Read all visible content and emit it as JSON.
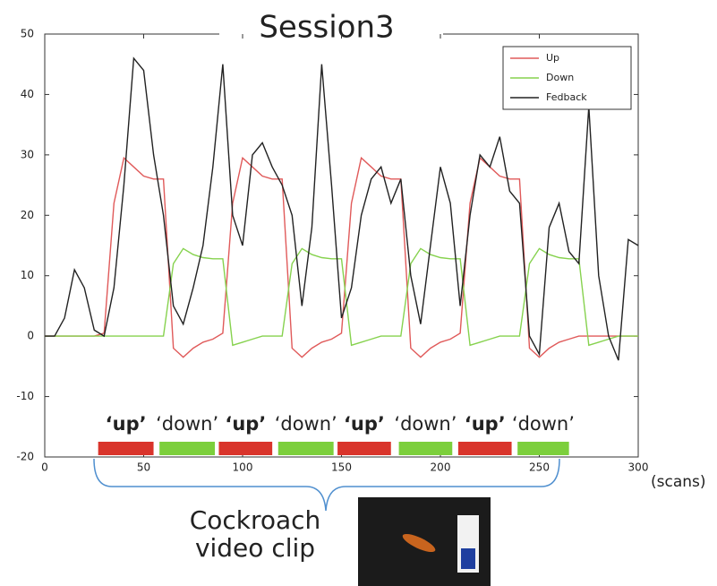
{
  "chart_data": {
    "type": "line",
    "title": "Session3",
    "x_label": "(scans)",
    "x": [
      0,
      5,
      10,
      15,
      20,
      25,
      30,
      35,
      40,
      45,
      50,
      55,
      60,
      65,
      70,
      75,
      80,
      85,
      90,
      95,
      100,
      105,
      110,
      115,
      120,
      125,
      130,
      135,
      140,
      145,
      150,
      155,
      160,
      165,
      170,
      175,
      180,
      185,
      190,
      195,
      200,
      205,
      210,
      215,
      220,
      225,
      230,
      235,
      240,
      245,
      250,
      255,
      260,
      265,
      270,
      275,
      280,
      285,
      290,
      295,
      300
    ],
    "series": [
      {
        "name": "Up",
        "color": "#e05a5a",
        "values": [
          0,
          0,
          0,
          0,
          0,
          0,
          0.5,
          22,
          29.5,
          28,
          26.5,
          26,
          26,
          -2,
          -3.5,
          -2,
          -1,
          -0.5,
          0.5,
          22,
          29.5,
          28,
          26.5,
          26,
          26,
          -2,
          -3.5,
          -2,
          -1,
          -0.5,
          0.5,
          22,
          29.5,
          28,
          26.5,
          26,
          26,
          -2,
          -3.5,
          -2,
          -1,
          -0.5,
          0.5,
          22,
          29.5,
          28,
          26.5,
          26,
          26,
          -2,
          -3.5,
          -2,
          -1,
          -0.5,
          0,
          0,
          0,
          0,
          0,
          0,
          0
        ]
      },
      {
        "name": "Down",
        "color": "#86d24e",
        "values": [
          0,
          0,
          0,
          0,
          0,
          0,
          0,
          0,
          0,
          0,
          0,
          0,
          0,
          12,
          14.5,
          13.5,
          13,
          12.8,
          12.8,
          -1.5,
          -1,
          -0.5,
          0,
          0,
          0,
          12,
          14.5,
          13.5,
          13,
          12.8,
          12.8,
          -1.5,
          -1,
          -0.5,
          0,
          0,
          0,
          12,
          14.5,
          13.5,
          13,
          12.8,
          12.8,
          -1.5,
          -1,
          -0.5,
          0,
          0,
          0,
          12,
          14.5,
          13.5,
          13,
          12.8,
          12.8,
          -1.5,
          -1,
          -0.5,
          0,
          0,
          0
        ]
      },
      {
        "name": "Fedback",
        "color": "#222222",
        "values": [
          0,
          0,
          3,
          11,
          8,
          1,
          0,
          8,
          25,
          46,
          44,
          30,
          20,
          5,
          2,
          8,
          15,
          28,
          45,
          20,
          15,
          30,
          32,
          28,
          25,
          20,
          5,
          18,
          45,
          25,
          3,
          8,
          20,
          26,
          28,
          22,
          26,
          10,
          2,
          15,
          28,
          22,
          5,
          20,
          30,
          28,
          33,
          24,
          22,
          0,
          -3,
          18,
          22,
          14,
          12,
          38,
          10,
          0,
          -4,
          16,
          15
        ]
      }
    ],
    "xlim": [
      0,
      300
    ],
    "xticks": [
      0,
      50,
      100,
      150,
      200,
      250,
      300
    ],
    "ylim": [
      -20,
      50
    ],
    "yticks": [
      -20,
      -10,
      0,
      10,
      20,
      30,
      40,
      50
    ],
    "legend": "top-right",
    "blocks": [
      {
        "label": "‘up’",
        "start": 27,
        "end": 55,
        "color": "#d9342b"
      },
      {
        "label": "‘down’",
        "start": 58,
        "end": 86,
        "color": "#7ccf3c"
      },
      {
        "label": "‘up’",
        "start": 88,
        "end": 115,
        "color": "#d9342b"
      },
      {
        "label": "‘down’",
        "start": 118,
        "end": 146,
        "color": "#7ccf3c"
      },
      {
        "label": "‘up’",
        "start": 148,
        "end": 175,
        "color": "#d9342b"
      },
      {
        "label": "‘down’",
        "start": 179,
        "end": 206,
        "color": "#7ccf3c"
      },
      {
        "label": "‘up’",
        "start": 209,
        "end": 236,
        "color": "#d9342b"
      },
      {
        "label": "‘down’",
        "start": 239,
        "end": 265,
        "color": "#7ccf3c"
      }
    ],
    "caption": [
      "Cockroach",
      "video clip"
    ]
  }
}
